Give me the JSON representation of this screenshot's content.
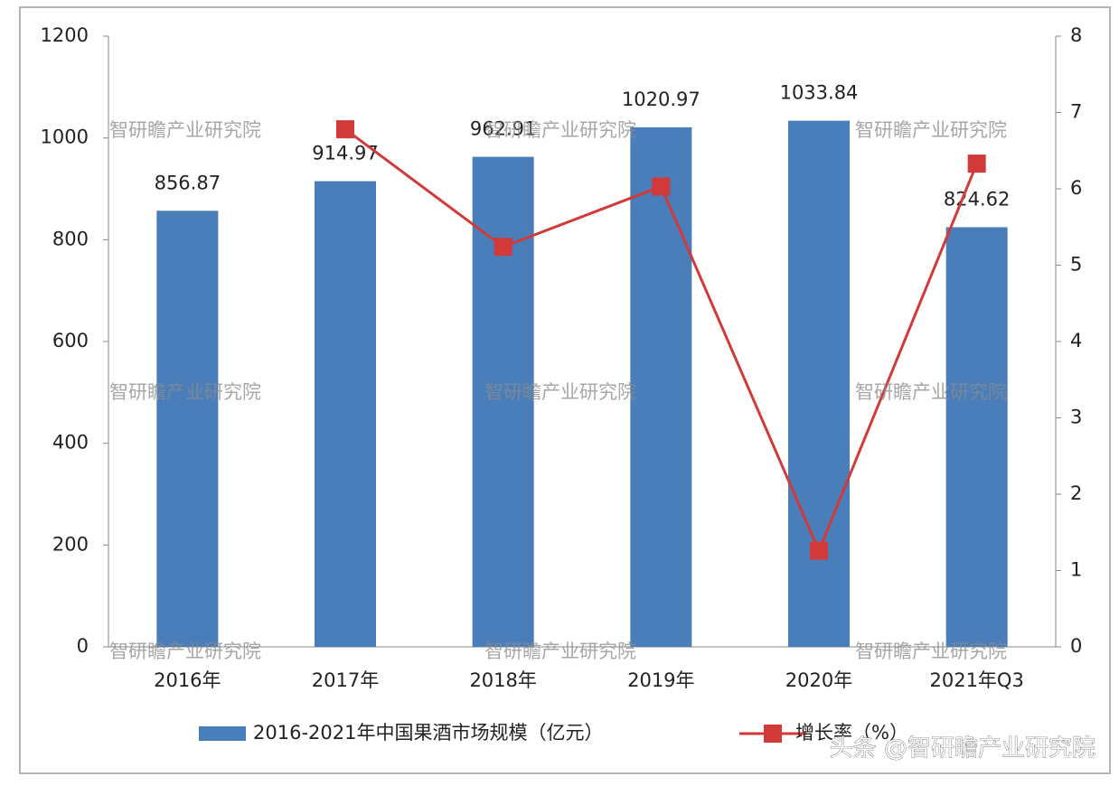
{
  "chart_data": {
    "type": "bar-line",
    "categories": [
      "2016年",
      "2017年",
      "2018年",
      "2019年",
      "2020年",
      "2021年Q3"
    ],
    "series": [
      {
        "name": "2016-2021年中国果酒市场规模（亿元）",
        "type": "bar",
        "color": "#4a7ebb",
        "values": [
          856.87,
          914.97,
          962.91,
          1020.97,
          1033.84,
          824.62
        ]
      },
      {
        "name": "增长率（%）",
        "type": "line",
        "axis": "y2",
        "color": "#d23a3a",
        "values": [
          null,
          6.78,
          5.24,
          6.03,
          1.26,
          6.33
        ]
      }
    ],
    "ylim": [
      0,
      1200
    ],
    "yticks": [
      0,
      200,
      400,
      600,
      800,
      1000,
      1200
    ],
    "y2lim": [
      0,
      8
    ],
    "y2ticks": [
      0,
      1,
      2,
      3,
      4,
      5,
      6,
      7,
      8
    ],
    "grid": false,
    "legend": "bottom",
    "watermark": "智研瞻产业研究院",
    "footer": "头条 @智研瞻产业研究院"
  }
}
